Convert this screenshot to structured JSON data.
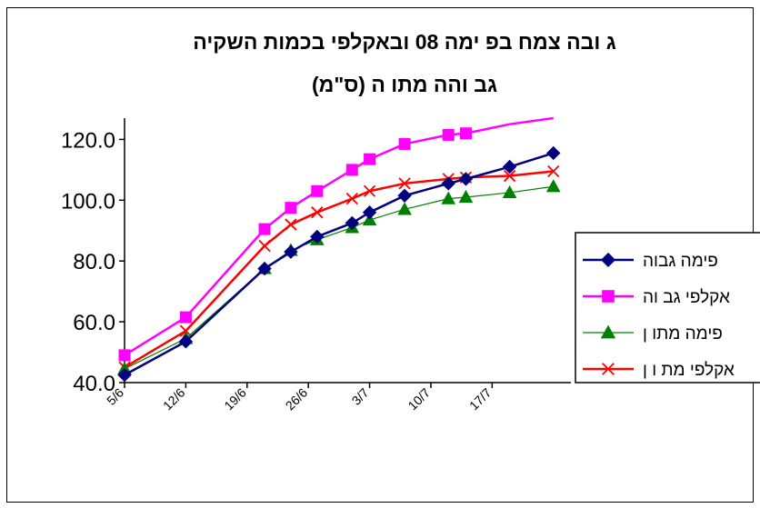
{
  "chart_data": {
    "type": "line",
    "title": "ג ובה צמח בפ ימה 08 ובאקלפי בכמות השקיה",
    "subtitle": "גב והה מתו ה (ס\"מ)",
    "x_ticks": [
      "5/6",
      "12/6",
      "19/6",
      "26/6",
      "3/7",
      "10/7",
      "17/7"
    ],
    "x_range": [
      "5/6",
      "26/7"
    ],
    "ylim": [
      40,
      127
    ],
    "y_ticks": [
      "40.0",
      "60.0",
      "80.0",
      "100.0",
      "120.0"
    ],
    "legend_position": "right",
    "series": [
      {
        "name": "פימה גבוה",
        "color": "#000080",
        "marker": "diamond",
        "x": [
          "5/6",
          "12/6",
          "21/6",
          "24/6",
          "27/6",
          "1/7",
          "3/7",
          "7/7",
          "12/7",
          "14/7",
          "19/7",
          "24/7"
        ],
        "values": [
          42.5,
          53.5,
          77.5,
          83.0,
          88.0,
          92.5,
          96.0,
          101.5,
          105.5,
          107.0,
          111.0,
          115.5
        ]
      },
      {
        "name": "אקלפי גב וה",
        "color": "#FF00FF",
        "marker": "square",
        "x": [
          "5/6",
          "12/6",
          "21/6",
          "24/6",
          "27/6",
          "1/7",
          "3/7",
          "7/7",
          "12/7",
          "14/7",
          "19/7",
          "24/7"
        ],
        "values": [
          49.0,
          61.5,
          90.5,
          97.5,
          103.0,
          110.0,
          113.5,
          118.5,
          121.5,
          122.0,
          125.0,
          127.0
        ],
        "markers_shown": 10
      },
      {
        "name": "פימה מתו ן",
        "color": "#008000",
        "marker": "triangle",
        "x": [
          "5/6",
          "12/6",
          "21/6",
          "24/6",
          "27/6",
          "1/7",
          "3/7",
          "7/7",
          "12/7",
          "14/7",
          "19/7",
          "24/7"
        ],
        "values": [
          44.5,
          54.5,
          77.5,
          83.5,
          87.0,
          91.0,
          93.5,
          97.0,
          100.5,
          101.0,
          102.5,
          104.5
        ]
      },
      {
        "name": "אקלפי מת ו ן",
        "color": "#FF0000",
        "marker": "x",
        "x": [
          "5/6",
          "12/6",
          "21/6",
          "24/6",
          "27/6",
          "1/7",
          "3/7",
          "7/7",
          "12/7",
          "14/7",
          "19/7",
          "24/7"
        ],
        "values": [
          45.0,
          57.0,
          85.0,
          92.0,
          96.0,
          100.5,
          103.0,
          105.5,
          107.0,
          107.5,
          108.0,
          109.5
        ]
      }
    ]
  }
}
